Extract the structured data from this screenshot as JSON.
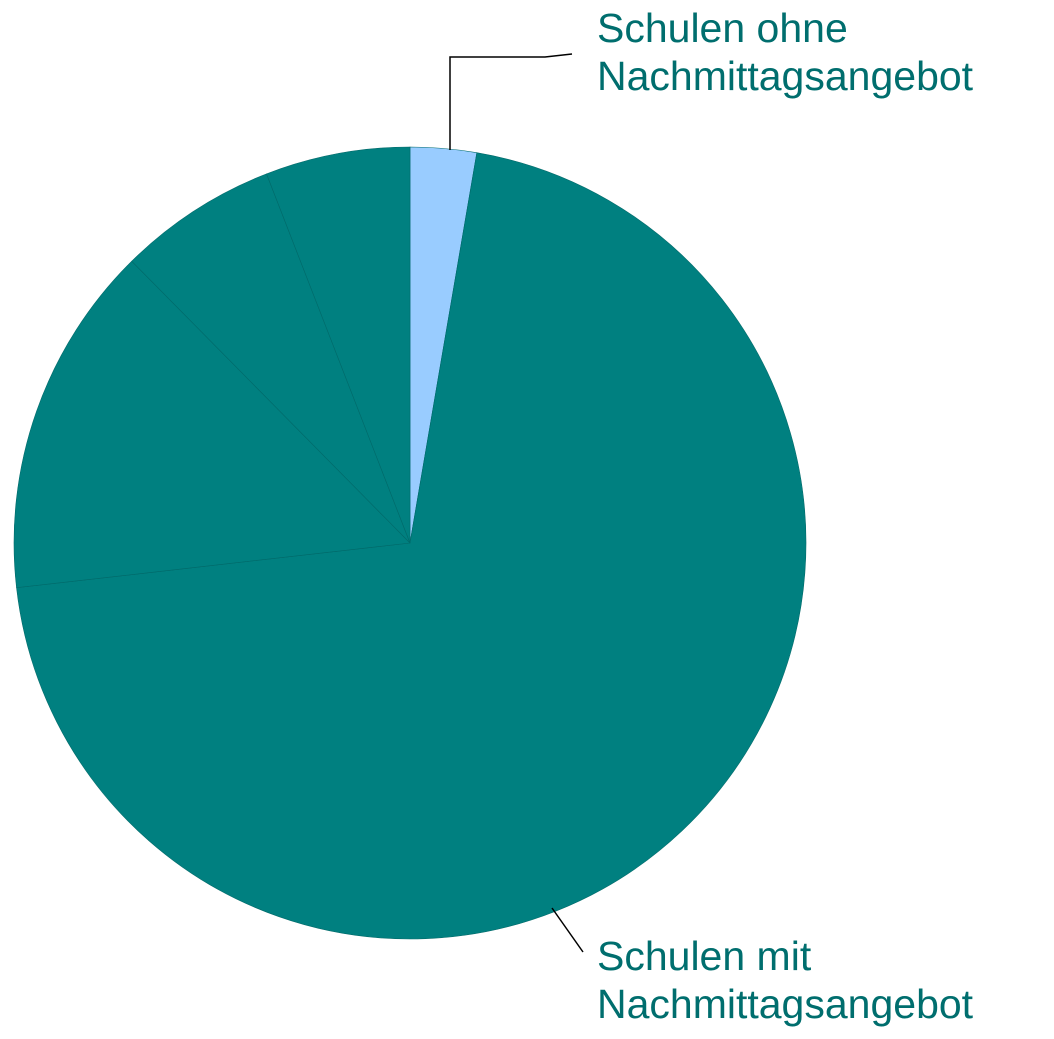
{
  "chart_data": {
    "type": "pie",
    "categories": [
      "Schulen ohne\nNachmittagsangebot",
      "Schulen mit\nNachmittagsangebot",
      null,
      null,
      null
    ],
    "values": [
      2.7,
      70.5,
      14.4,
      6.5,
      5.9
    ],
    "colors": [
      "#99ccff",
      "#008080",
      "#008080",
      "#008080",
      "#008080"
    ]
  }
}
